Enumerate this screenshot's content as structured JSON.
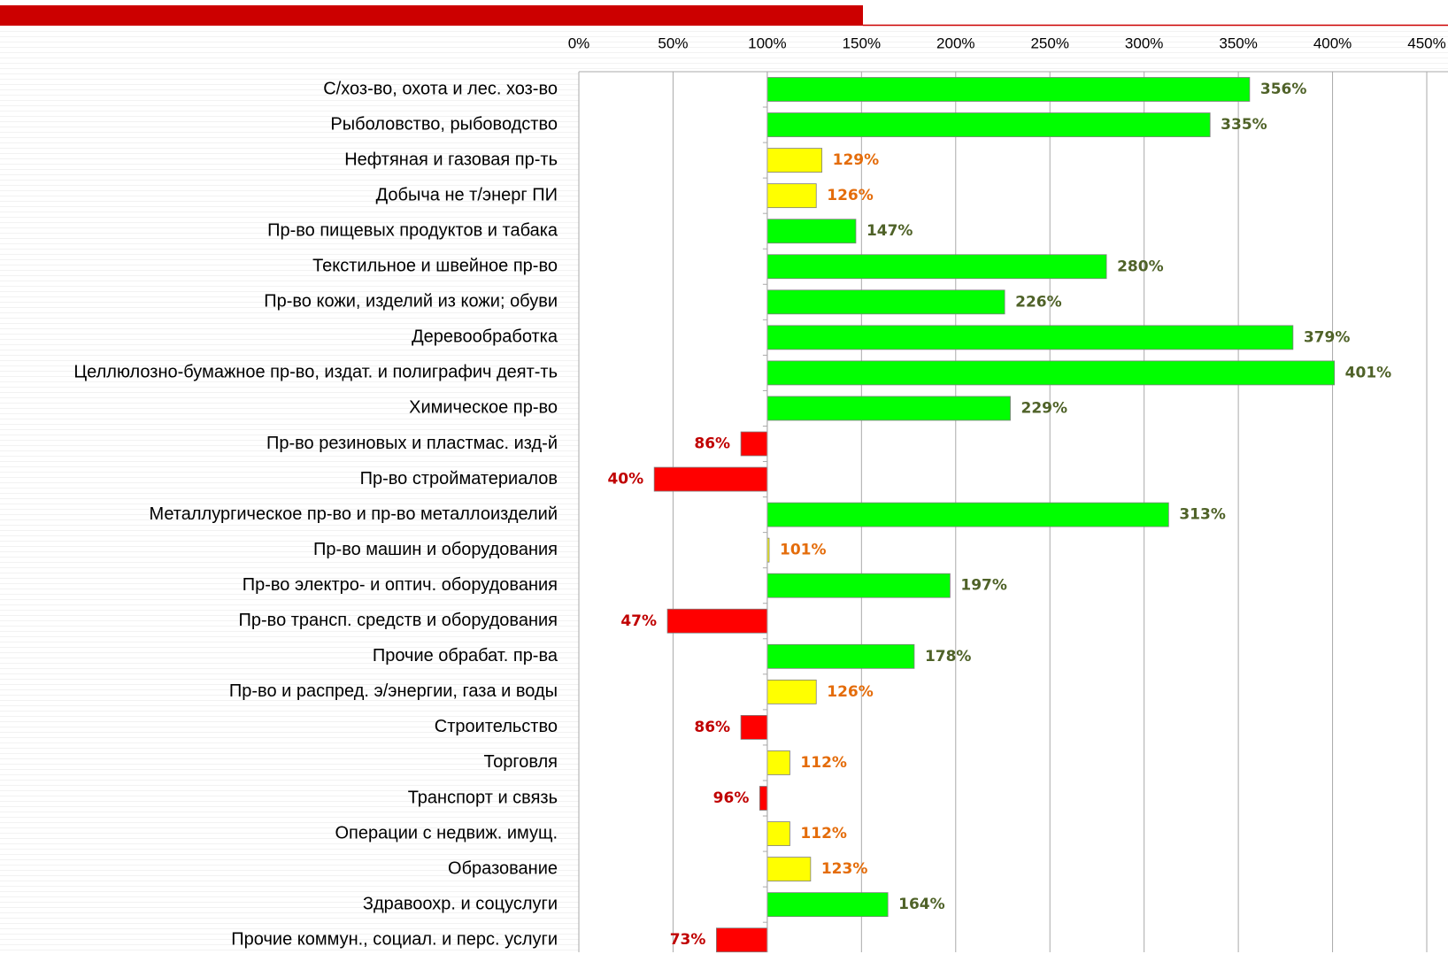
{
  "chart_data": {
    "type": "bar",
    "orientation": "horizontal",
    "baseline": 100,
    "categories": [
      "С/хоз-во, охота и лес. хоз-во",
      "Рыболовство, рыбоводство",
      "Нефтяная и газовая пр-ть",
      "Добыча не т/энерг ПИ",
      "Пр-во пищевых продуктов и табака",
      "Текстильное и швейное пр-во",
      "Пр-во кожи, изделий из кожи; обуви",
      "Деревообработка",
      "Целлюлозно-бумажное пр-во, издат. и полиграфич деят-ть",
      "Химическое пр-во",
      "Пр-во резиновых и пластмас. изд-й",
      "Пр-во стройматериалов",
      "Металлургическое пр-во и пр-во металлоизделий",
      "Пр-во машин и оборудования",
      "Пр-во электро- и оптич. оборудования",
      "Пр-во трансп. средств и оборудования",
      "Прочие обрабат. пр-ва",
      "Пр-во и распред. э/энергии, газа и воды",
      "Строительство",
      "Торговля",
      "Транспорт и связь",
      "Операции с недвиж. имущ.",
      "Образование",
      "Здравоохр. и соцуслуги",
      "Прочие коммун., социал. и перс. услуги"
    ],
    "values": [
      356,
      335,
      129,
      126,
      147,
      280,
      226,
      379,
      401,
      229,
      86,
      40,
      313,
      101,
      197,
      47,
      178,
      126,
      86,
      112,
      96,
      112,
      123,
      164,
      73
    ],
    "value_labels": [
      "356%",
      "335%",
      "129%",
      "126%",
      "147%",
      "280%",
      "226%",
      "379%",
      "401%",
      "229%",
      "86%",
      "40%",
      "313%",
      "101%",
      "197%",
      "47%",
      "178%",
      "126%",
      "86%",
      "112%",
      "96%",
      "112%",
      "123%",
      "164%",
      "73%"
    ],
    "colors": [
      "#00ff00",
      "#00ff00",
      "#ffff00",
      "#ffff00",
      "#00ff00",
      "#00ff00",
      "#00ff00",
      "#00ff00",
      "#00ff00",
      "#00ff00",
      "#ff0000",
      "#ff0000",
      "#00ff00",
      "#ffff00",
      "#00ff00",
      "#ff0000",
      "#00ff00",
      "#ffff00",
      "#ff0000",
      "#ffff00",
      "#ff0000",
      "#ffff00",
      "#ffff00",
      "#00ff00",
      "#ff0000"
    ],
    "label_colors": [
      "#4f6228",
      "#4f6228",
      "#e46c0a",
      "#e46c0a",
      "#4f6228",
      "#4f6228",
      "#4f6228",
      "#4f6228",
      "#4f6228",
      "#4f6228",
      "#c00000",
      "#c00000",
      "#4f6228",
      "#e46c0a",
      "#4f6228",
      "#c00000",
      "#4f6228",
      "#e46c0a",
      "#c00000",
      "#e46c0a",
      "#c00000",
      "#e46c0a",
      "#e46c0a",
      "#4f6228",
      "#c00000"
    ],
    "xlim": [
      0,
      450
    ],
    "xticks": [
      {
        "value": 0,
        "label": "0%"
      },
      {
        "value": 50,
        "label": "50%"
      },
      {
        "value": 100,
        "label": "100%"
      },
      {
        "value": 150,
        "label": "150%"
      },
      {
        "value": 200,
        "label": "200%"
      },
      {
        "value": 250,
        "label": "250%"
      },
      {
        "value": 300,
        "label": "300%"
      },
      {
        "value": 350,
        "label": "350%"
      },
      {
        "value": 400,
        "label": "400%"
      },
      {
        "value": 450,
        "label": "450%"
      }
    ],
    "grid": true
  }
}
